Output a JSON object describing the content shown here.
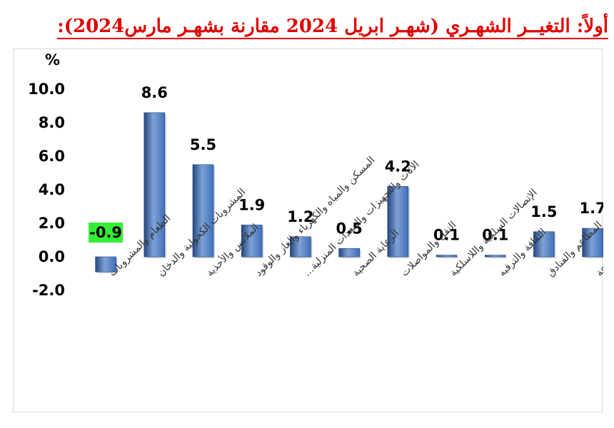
{
  "title": "أولاً: التغيــر الشهـري (شهـر ابريل 2024 مقارنة بشهـر مارس2024):",
  "chart_data": {
    "type": "bar",
    "ylabel": "%",
    "ylim": [
      -2.0,
      10.0
    ],
    "yticks": [
      "10.0",
      "8.0",
      "6.0",
      "4.0",
      "2.0",
      "0.0",
      "-2.0"
    ],
    "ytick_values": [
      10,
      8,
      6,
      4,
      2,
      0,
      -2
    ],
    "categories": [
      "الطعام والمشروبات",
      "المشروبات الكحولية والدخان",
      "الملابس والأحذية",
      "المسكن والمياه والكهرباء والغاز والوقود",
      "الأثاث والتجهيزات والمعدات المنزلية...",
      "الرعاية الصحية",
      "النقل والمواصلات",
      "الإتصالات السلكية واللاسلكية",
      "الثقافة والترفيه",
      "المطاعم والفنادق",
      "السلع والخدمات المتنوعة"
    ],
    "values": [
      -0.9,
      8.6,
      5.5,
      1.9,
      1.2,
      0.5,
      4.2,
      0.1,
      0.1,
      1.5,
      1.7
    ],
    "data_labels": [
      "-0.9",
      "8.6",
      "5.5",
      "1.9",
      "1.2",
      "0.5",
      "4.2",
      "0.1",
      "0.1",
      "1.5",
      "1.7"
    ],
    "highlight_index": 0,
    "colors": {
      "bar": "#3f6fb8",
      "bar_light": "#7ea2d6",
      "bar_dark": "#24467f",
      "highlight_label_bg": "#33ee33",
      "title": "#e00000"
    },
    "grid": false,
    "legend": "none"
  }
}
